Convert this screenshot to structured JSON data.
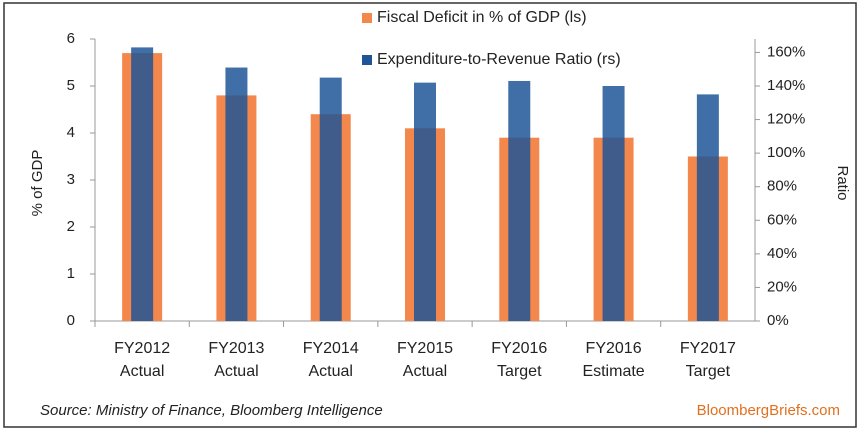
{
  "chart_data": {
    "type": "bar",
    "categories": [
      [
        "FY2012",
        "Actual"
      ],
      [
        "FY2013",
        "Actual"
      ],
      [
        "FY2014",
        "Actual"
      ],
      [
        "FY2015",
        "Actual"
      ],
      [
        "FY2016",
        "Target"
      ],
      [
        "FY2016",
        "Estimate"
      ],
      [
        "FY2017",
        "Target"
      ]
    ],
    "series": [
      {
        "name": "Fiscal Deficit in % of GDP (ls)",
        "color": "#f4874b",
        "values": [
          5.7,
          4.8,
          4.4,
          4.1,
          3.9,
          3.9,
          3.5
        ]
      },
      {
        "name": "Expenditure-to-Revenue Ratio (rs)",
        "color": "#1f5597",
        "axis": "y2",
        "values": [
          163,
          151,
          145,
          142,
          143,
          140,
          135
        ]
      }
    ],
    "ylabel": "% of GDP",
    "y2label": "Ratio",
    "ylim": [
      0,
      6
    ],
    "yticks": [
      0,
      1,
      2,
      3,
      4,
      5,
      6
    ],
    "y2lim": [
      0,
      168
    ],
    "y2ticks": [
      {
        "value": 0,
        "label": "0%"
      },
      {
        "value": 20,
        "label": "20%"
      },
      {
        "value": 40,
        "label": "40%"
      },
      {
        "value": 60,
        "label": "60%"
      },
      {
        "value": 80,
        "label": "80%"
      },
      {
        "value": 100,
        "label": "100%"
      },
      {
        "value": 120,
        "label": "120%"
      },
      {
        "value": 140,
        "label": "140%"
      },
      {
        "value": 160,
        "label": "160%"
      }
    ],
    "source": "Source: Ministry of Finance, Bloomberg Intelligence",
    "brand": "BloombergBriefs.com"
  }
}
